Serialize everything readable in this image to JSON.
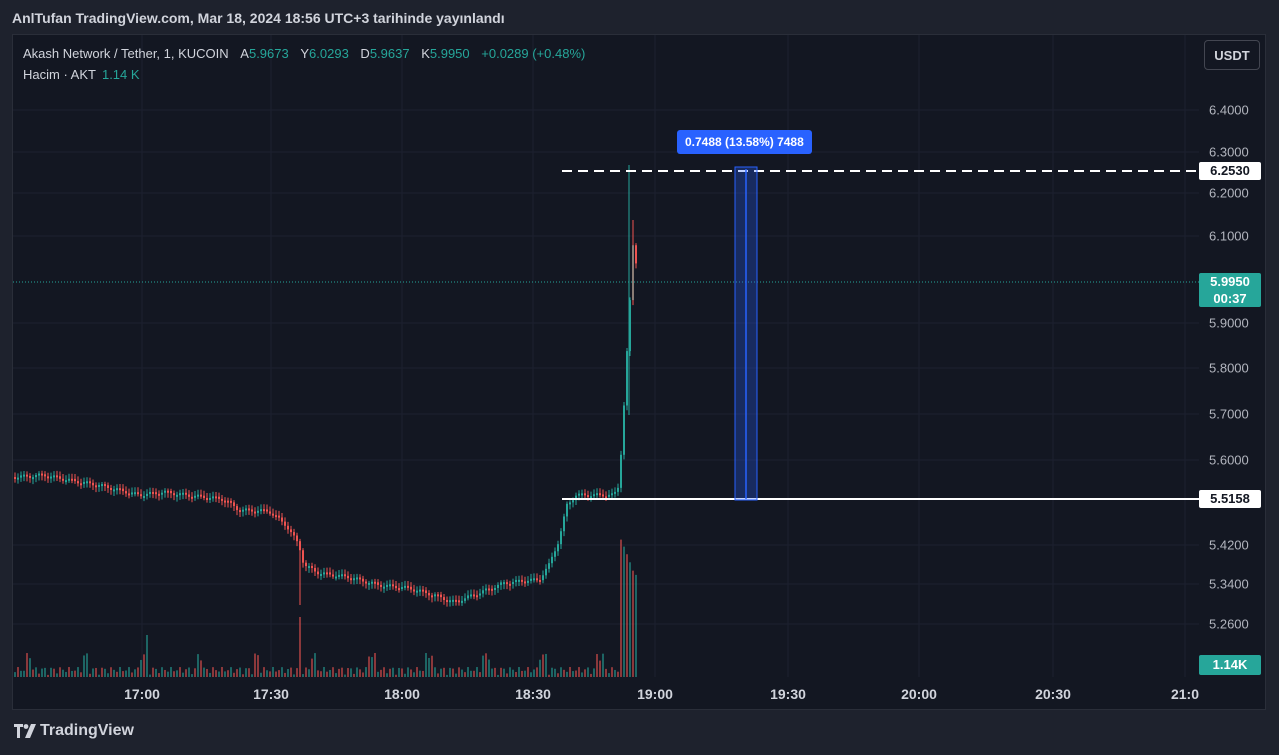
{
  "publication": "AnlTufan TradingView.com, Mar 18, 2024 18:56 UTC+3 tarihinde yayınlandı",
  "legend": {
    "symbol": "Akash Network / Tether, 1, KUCOIN",
    "open_label": "A",
    "open": "5.9673",
    "high_label": "Y",
    "high": "6.0293",
    "low_label": "D",
    "low": "5.9637",
    "close_label": "K",
    "close": "5.9950",
    "change": "+0.0289 (+0.48%)"
  },
  "volume_legend": {
    "label": "Hacim · AKT",
    "value": "1.14 K"
  },
  "currency_button": "USDT",
  "price_axis": [
    "6.4000",
    "6.3000",
    "6.2000",
    "6.1000",
    "5.9000",
    "5.8000",
    "5.7000",
    "5.6000",
    "5.4200",
    "5.3400",
    "5.2600"
  ],
  "time_axis": [
    "17:00",
    "17:30",
    "18:00",
    "18:30",
    "19:00",
    "19:30",
    "20:00",
    "20:30",
    "21:0"
  ],
  "price_labels": {
    "top_line": "6.2530",
    "current_price": "5.9950",
    "countdown": "00:37",
    "base_line": "5.5158",
    "volume": "1.14K"
  },
  "measure": {
    "text": "0.7488 (13.58%) 7488"
  },
  "footer": {
    "brand": "TradingView"
  },
  "colors": {
    "up": "#26a69a",
    "down": "#ef5350",
    "background": "#131722",
    "measure": "#2962ff"
  }
}
